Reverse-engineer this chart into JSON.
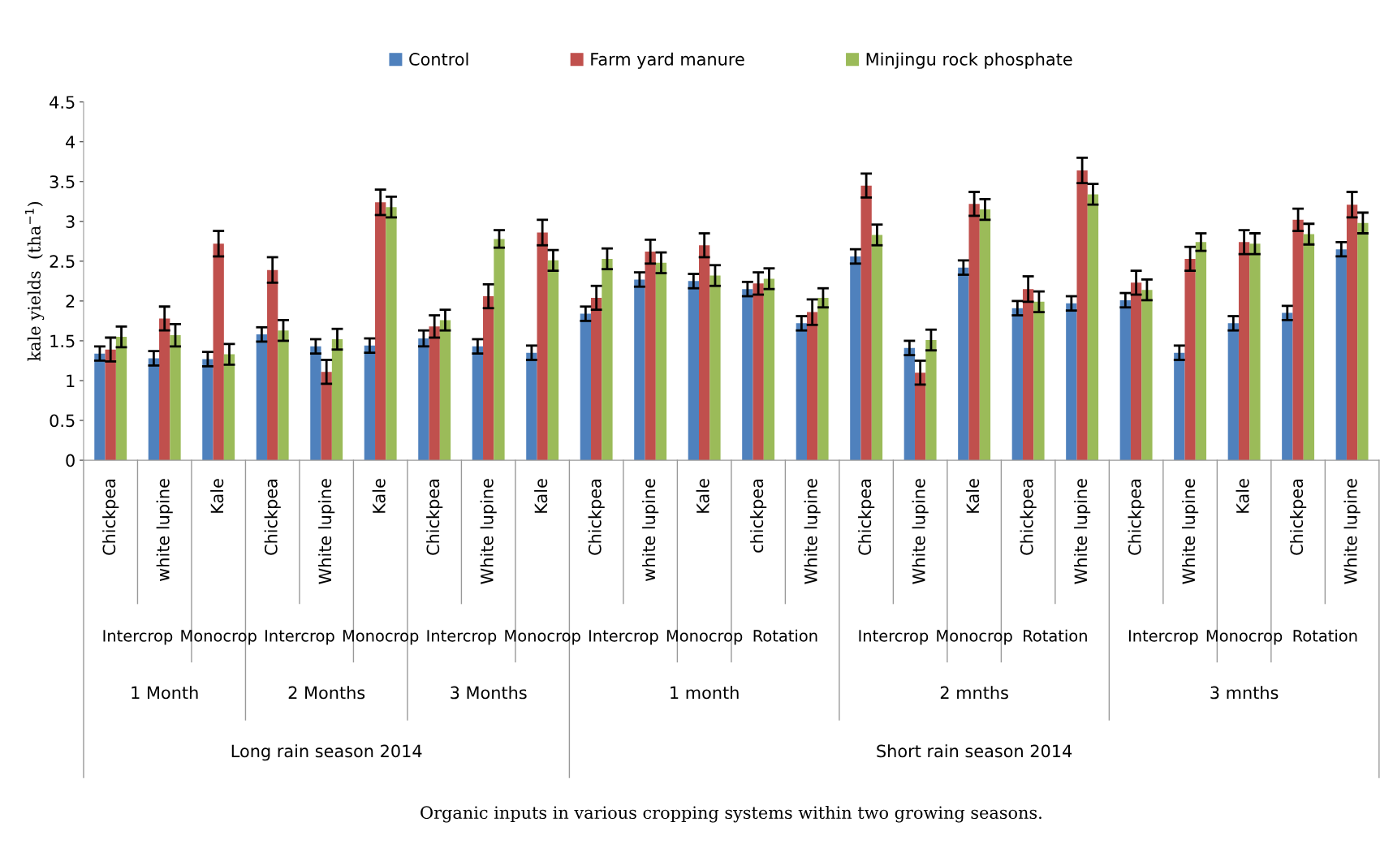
{
  "chart_data": {
    "type": "bar",
    "ylabel": "kale yields  (tha$^{−1}$)",
    "categories": [
      "Chickpea",
      "white lupine",
      "Kale",
      "Chickpea",
      "White lupine",
      "Kale",
      "Chickpea",
      "White lupine",
      "Kale",
      "Chickpea",
      "white lupine",
      "Kale",
      "chickpea",
      "White lupine",
      "Chickpea",
      "White lupine",
      "Kale",
      "Chickpea",
      "White lupine",
      "Chickpea",
      "White lupine",
      "Kale",
      "Chickpea",
      "White lupine"
    ],
    "series": [
      {
        "name": "Control",
        "color": "#4f81bd",
        "values": [
          1.34,
          1.28,
          1.27,
          1.58,
          1.43,
          1.44,
          1.53,
          1.43,
          1.35,
          1.84,
          2.27,
          2.25,
          2.15,
          1.72,
          2.56,
          1.41,
          2.42,
          1.91,
          1.97,
          2.01,
          1.35,
          1.72,
          1.85,
          2.65
        ],
        "errors": [
          0.09,
          0.09,
          0.09,
          0.09,
          0.09,
          0.09,
          0.1,
          0.09,
          0.09,
          0.09,
          0.09,
          0.09,
          0.09,
          0.09,
          0.09,
          0.09,
          0.09,
          0.09,
          0.09,
          0.09,
          0.09,
          0.09,
          0.09,
          0.09
        ]
      },
      {
        "name": "Farm yard manure",
        "color": "#c0504d",
        "values": [
          1.39,
          1.78,
          2.72,
          2.39,
          1.11,
          3.24,
          1.68,
          2.06,
          2.86,
          2.04,
          2.62,
          2.7,
          2.22,
          1.86,
          3.45,
          1.1,
          3.22,
          2.15,
          3.64,
          2.23,
          2.53,
          2.74,
          3.02,
          3.21
        ],
        "errors": [
          0.15,
          0.15,
          0.16,
          0.16,
          0.15,
          0.16,
          0.14,
          0.15,
          0.16,
          0.15,
          0.15,
          0.15,
          0.14,
          0.16,
          0.15,
          0.15,
          0.15,
          0.16,
          0.16,
          0.15,
          0.15,
          0.15,
          0.14,
          0.16
        ]
      },
      {
        "name": "Minjingu rock phosphate",
        "color": "#9bbb59",
        "values": [
          1.55,
          1.57,
          1.33,
          1.63,
          1.52,
          3.18,
          1.76,
          2.78,
          2.51,
          2.53,
          2.48,
          2.32,
          2.28,
          2.04,
          2.83,
          1.51,
          3.15,
          1.99,
          3.34,
          2.14,
          2.74,
          2.72,
          2.84,
          2.98
        ],
        "errors": [
          0.13,
          0.14,
          0.13,
          0.13,
          0.13,
          0.13,
          0.13,
          0.11,
          0.13,
          0.13,
          0.13,
          0.13,
          0.13,
          0.12,
          0.13,
          0.13,
          0.13,
          0.13,
          0.13,
          0.13,
          0.11,
          0.13,
          0.13,
          0.13
        ]
      }
    ],
    "ylim": [
      0,
      4.5
    ],
    "yticks": [
      0,
      0.5,
      1,
      1.5,
      2,
      2.5,
      3,
      3.5,
      4,
      4.5
    ],
    "grid": false,
    "legend": "top",
    "annotations": [
      "Intercrop",
      "Monocrop",
      "Intercrop",
      "Monocrop",
      "Intercrop",
      "Monocrop",
      "Intercrop",
      "Monocrop",
      "Rotation",
      "Intercrop",
      "Monocrop",
      "Rotation",
      "Intercrop",
      "Monocrop",
      "Rotation",
      "1 Month",
      "2 Months",
      "3 Months",
      "1 month",
      "2 mnths",
      "3 mnths",
      "Long rain season 2014",
      "Short rain season 2014",
      "Organic inputs in various cropping systems within two growing seasons."
    ]
  }
}
